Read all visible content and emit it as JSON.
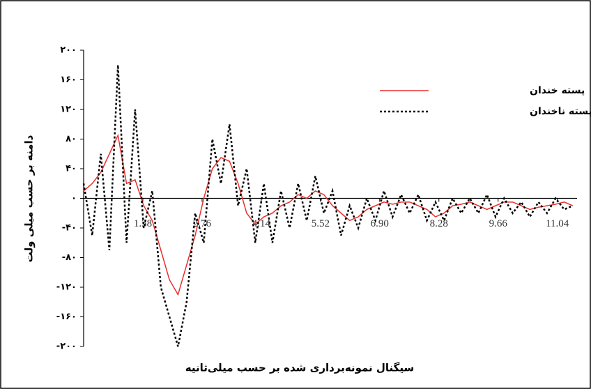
{
  "chart_data": {
    "type": "line",
    "x_label": "سیگنال نمونه‌برداری شده بر حسب میلی‌ثانیه",
    "y_label": "دامنه بر حسب میلی ولت",
    "x": [
      0,
      0.2,
      0.4,
      0.6,
      0.8,
      1.0,
      1.2,
      1.4,
      1.6,
      1.8,
      2.0,
      2.2,
      2.4,
      2.6,
      2.8,
      3.0,
      3.2,
      3.4,
      3.6,
      3.8,
      4.0,
      4.2,
      4.4,
      4.6,
      4.8,
      5.0,
      5.2,
      5.4,
      5.6,
      5.8,
      6.0,
      6.2,
      6.4,
      6.6,
      6.8,
      7.0,
      7.2,
      7.4,
      7.6,
      7.8,
      8.0,
      8.2,
      8.4,
      8.6,
      8.8,
      9.0,
      9.2,
      9.4,
      9.6,
      9.8,
      10.0,
      10.2,
      10.4,
      10.6,
      10.8,
      11.0,
      11.2,
      11.4
    ],
    "series": [
      {
        "name": "پسته خندان",
        "color": "#e8312f",
        "line_style": "solid",
        "values": [
          10,
          20,
          35,
          60,
          85,
          20,
          25,
          -10,
          -30,
          -70,
          -110,
          -130,
          -90,
          -50,
          0,
          40,
          55,
          50,
          20,
          -20,
          -35,
          -25,
          -20,
          -10,
          -5,
          5,
          0,
          10,
          5,
          -10,
          -20,
          -30,
          -25,
          -15,
          -10,
          -5,
          -8,
          -5,
          -5,
          -10,
          -15,
          -25,
          -20,
          -10,
          -8,
          -5,
          -10,
          -15,
          -10,
          -5,
          -5,
          -10,
          -15,
          -12,
          -10,
          -8,
          -5,
          -10
        ]
      },
      {
        "name": "پسته ناخندان",
        "color": "#000000",
        "line_style": "dotted",
        "values": [
          20,
          -50,
          60,
          -70,
          180,
          -60,
          120,
          -40,
          10,
          -120,
          -160,
          -200,
          -140,
          -20,
          -60,
          80,
          20,
          100,
          -10,
          40,
          -60,
          20,
          -60,
          10,
          -40,
          20,
          -30,
          30,
          -20,
          10,
          -50,
          -10,
          -40,
          0,
          -30,
          10,
          -25,
          5,
          -20,
          5,
          -30,
          -5,
          -30,
          0,
          -20,
          0,
          -20,
          5,
          -25,
          0,
          -20,
          -5,
          -25,
          -5,
          -20,
          0,
          -15,
          -10
        ]
      }
    ],
    "xlim": [
      0,
      11.5
    ],
    "ylim": [
      -200,
      200
    ],
    "xticks": [
      1.38,
      2.76,
      4.14,
      5.52,
      {
        "value": 6.9,
        "label": "6.90"
      },
      8.28,
      9.66,
      11.04
    ],
    "yticks": [
      {
        "value": 200,
        "label": "۲۰۰"
      },
      {
        "value": 160,
        "label": "۱۶۰"
      },
      {
        "value": 120,
        "label": "۱۲۰"
      },
      {
        "value": 80,
        "label": "۸۰"
      },
      {
        "value": 40,
        "label": "۴۰"
      },
      {
        "value": 0,
        "label": "۰"
      },
      {
        "value": -40,
        "label": "-۴۰"
      },
      {
        "value": -80,
        "label": "-۸۰"
      },
      {
        "value": -120,
        "label": "-۱۲۰"
      },
      {
        "value": -160,
        "label": "-۱۶۰"
      },
      {
        "value": -200,
        "label": "-۲۰۰"
      }
    ],
    "legend": "upper right"
  }
}
